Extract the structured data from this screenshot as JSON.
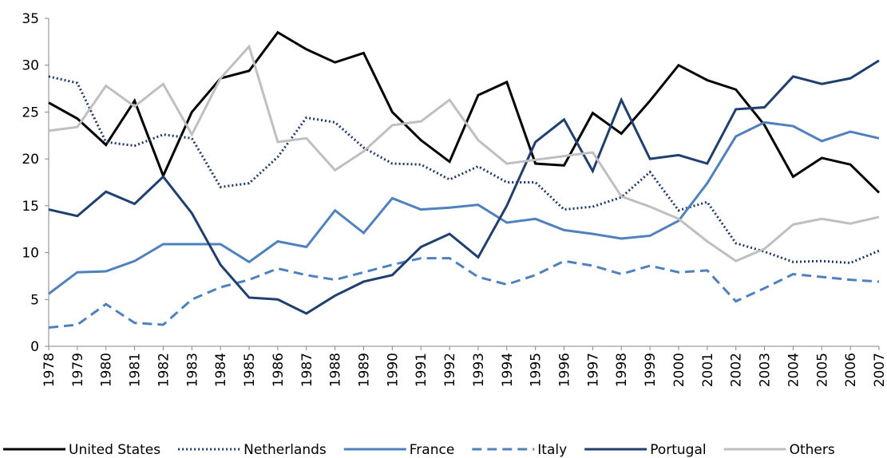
{
  "chart_data": {
    "type": "line",
    "x": [
      1978,
      1979,
      1980,
      1981,
      1982,
      1983,
      1984,
      1985,
      1986,
      1987,
      1988,
      1989,
      1990,
      1991,
      1992,
      1993,
      1994,
      1995,
      1996,
      1997,
      1998,
      1999,
      2000,
      2001,
      2002,
      2003,
      2004,
      2005,
      2006,
      2007
    ],
    "xlim": [
      1978,
      2007
    ],
    "ylim": [
      0,
      35
    ],
    "yticks": [
      0,
      5,
      10,
      15,
      20,
      25,
      30,
      35
    ],
    "grid": false,
    "legend": "bottom",
    "series": [
      {
        "name": "United States",
        "color": "#000000",
        "style": "solid",
        "values": [
          26,
          24.3,
          21.5,
          26.2,
          18.2,
          25,
          28.6,
          29.4,
          33.5,
          31.7,
          30.3,
          31.3,
          25,
          22,
          19.7,
          26.8,
          28.2,
          19.5,
          19.3,
          24.9,
          22.7,
          26.2,
          30,
          28.4,
          27.4,
          23.6,
          18.1,
          20.1,
          19.4,
          16.4
        ]
      },
      {
        "name": "Netherlands",
        "color": "#1f3864",
        "style": "dotted",
        "values": [
          28.8,
          28.1,
          21.8,
          21.4,
          22.6,
          22.2,
          17,
          17.4,
          20.2,
          24.4,
          23.9,
          21.2,
          19.5,
          19.4,
          17.8,
          19.2,
          17.5,
          17.5,
          14.6,
          14.9,
          15.9,
          18.6,
          14.5,
          15.4,
          11,
          10.1,
          9,
          9.1,
          8.9,
          10.2
        ]
      },
      {
        "name": "France",
        "color": "#4f81bd",
        "style": "solid",
        "values": [
          5.6,
          7.9,
          8,
          9.1,
          10.9,
          10.9,
          10.9,
          9,
          11.2,
          10.6,
          14.5,
          12.1,
          15.8,
          14.6,
          14.8,
          15.1,
          13.2,
          13.6,
          12.4,
          12,
          11.5,
          11.8,
          13.4,
          17.4,
          22.4,
          23.9,
          23.5,
          21.9,
          22.9,
          22.2
        ]
      },
      {
        "name": "Italy",
        "color": "#4f81bd",
        "style": "dashed",
        "values": [
          2,
          2.3,
          4.5,
          2.5,
          2.3,
          5,
          6.3,
          7.1,
          8.3,
          7.6,
          7.1,
          7.9,
          8.7,
          9.4,
          9.4,
          7.4,
          6.6,
          7.6,
          9.1,
          8.6,
          7.7,
          8.6,
          7.9,
          8.1,
          4.8,
          6.2,
          7.7,
          7.4,
          7.1,
          6.9
        ]
      },
      {
        "name": "Portugal",
        "color": "#1f3f6f",
        "style": "solid",
        "values": [
          14.6,
          13.9,
          16.5,
          15.2,
          18.1,
          14.2,
          8.7,
          5.2,
          5,
          3.5,
          5.4,
          6.9,
          7.6,
          10.6,
          12,
          9.5,
          15,
          21.8,
          24.2,
          18.7,
          26.3,
          20,
          20.4,
          19.5,
          25.3,
          25.5,
          28.8,
          28,
          28.6,
          30.5
        ]
      },
      {
        "name": "Others",
        "color": "#bfbfbf",
        "style": "solid",
        "values": [
          23,
          23.4,
          27.8,
          25.6,
          28,
          22.6,
          28.6,
          32,
          21.8,
          22.2,
          18.8,
          20.8,
          23.6,
          24,
          26.3,
          22,
          19.5,
          19.9,
          20.3,
          20.7,
          16,
          14.9,
          13.6,
          11.2,
          9.1,
          10.4,
          13,
          13.6,
          13.1,
          13.8
        ]
      }
    ]
  }
}
